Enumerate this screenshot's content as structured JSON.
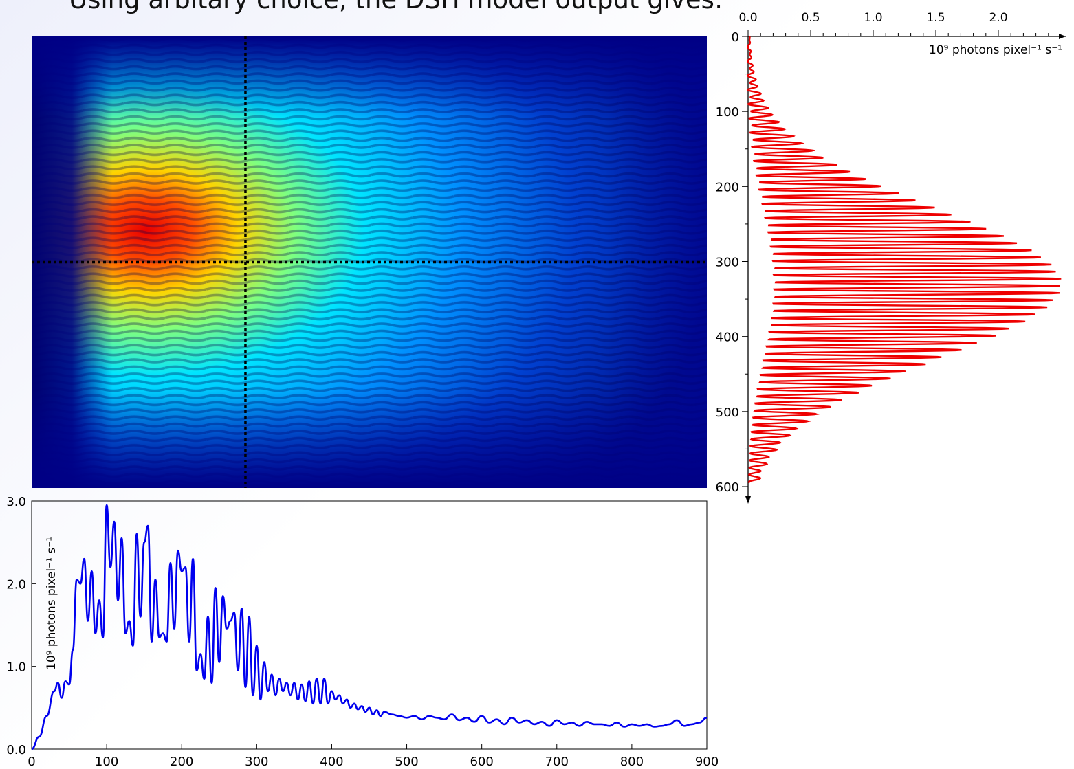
{
  "slide": {
    "title": "Using arbitary choice, the DSH model output gives:"
  },
  "colormap": "jet",
  "colors": {
    "horizontal_profile": "#0000ee",
    "vertical_profile": "#ee0000",
    "cut_line": "#000000"
  },
  "chart_data": [
    {
      "type": "heatmap",
      "description_key": "field",
      "colormap": "jet",
      "xlim": [
        0,
        900
      ],
      "ylim": [
        0,
        600
      ],
      "cut_x": 285,
      "cut_y": 300,
      "peak_location": [
        150,
        280
      ]
    },
    {
      "type": "line",
      "ylabel": "10⁹ photons pixel⁻¹ s⁻¹",
      "xlim": [
        0,
        900
      ],
      "ylim": [
        0,
        3.0
      ],
      "x_ticks": [
        "0",
        "100",
        "200",
        "300",
        "400",
        "500",
        "600",
        "700",
        "800",
        "900"
      ],
      "y_ticks": [
        "0.0",
        "1.0",
        "2.0",
        "3.0"
      ],
      "series": [
        {
          "color": "#0000ee",
          "x": [
            0,
            10,
            20,
            30,
            35,
            40,
            45,
            50,
            55,
            60,
            65,
            70,
            75,
            80,
            85,
            90,
            95,
            100,
            105,
            110,
            115,
            120,
            125,
            130,
            135,
            140,
            145,
            150,
            155,
            160,
            165,
            170,
            175,
            180,
            185,
            190,
            195,
            200,
            205,
            210,
            215,
            220,
            225,
            230,
            235,
            240,
            245,
            250,
            255,
            260,
            265,
            270,
            275,
            280,
            285,
            290,
            295,
            300,
            305,
            310,
            315,
            320,
            325,
            330,
            335,
            340,
            345,
            350,
            355,
            360,
            365,
            370,
            375,
            380,
            385,
            390,
            395,
            400,
            405,
            410,
            415,
            420,
            425,
            430,
            435,
            440,
            445,
            450,
            455,
            460,
            465,
            470,
            480,
            490,
            500,
            510,
            520,
            530,
            540,
            550,
            560,
            570,
            580,
            590,
            600,
            610,
            620,
            630,
            640,
            650,
            660,
            670,
            680,
            690,
            700,
            710,
            720,
            730,
            740,
            750,
            760,
            770,
            780,
            790,
            800,
            810,
            820,
            830,
            840,
            850,
            860,
            870,
            880,
            890,
            900
          ],
          "y": [
            0.0,
            0.15,
            0.4,
            0.7,
            0.8,
            0.62,
            0.82,
            0.78,
            1.2,
            2.05,
            2.0,
            2.3,
            1.55,
            2.15,
            1.4,
            1.8,
            1.35,
            2.95,
            2.2,
            2.75,
            1.8,
            2.55,
            1.4,
            1.55,
            1.25,
            2.6,
            1.6,
            2.5,
            2.7,
            1.3,
            2.05,
            1.35,
            1.4,
            1.3,
            2.25,
            1.45,
            2.4,
            2.15,
            2.2,
            1.3,
            2.3,
            0.95,
            1.15,
            0.85,
            1.6,
            0.8,
            1.95,
            1.05,
            1.85,
            1.45,
            1.55,
            1.65,
            0.95,
            1.7,
            0.75,
            1.6,
            0.65,
            1.25,
            0.6,
            1.05,
            0.7,
            0.9,
            0.65,
            0.85,
            0.7,
            0.8,
            0.65,
            0.8,
            0.6,
            0.78,
            0.58,
            0.82,
            0.55,
            0.85,
            0.55,
            0.85,
            0.55,
            0.7,
            0.6,
            0.65,
            0.55,
            0.6,
            0.5,
            0.55,
            0.48,
            0.52,
            0.45,
            0.5,
            0.42,
            0.47,
            0.4,
            0.45,
            0.42,
            0.4,
            0.38,
            0.4,
            0.36,
            0.4,
            0.38,
            0.36,
            0.42,
            0.35,
            0.38,
            0.33,
            0.4,
            0.32,
            0.36,
            0.3,
            0.38,
            0.32,
            0.35,
            0.3,
            0.33,
            0.28,
            0.35,
            0.3,
            0.32,
            0.28,
            0.33,
            0.3,
            0.3,
            0.28,
            0.32,
            0.27,
            0.3,
            0.28,
            0.3,
            0.27,
            0.28,
            0.3,
            0.35,
            0.28,
            0.3,
            0.32,
            0.38
          ]
        }
      ]
    },
    {
      "type": "line",
      "orientation": "vertical",
      "xlabel": "10⁹ photons pixel⁻¹ s⁻¹",
      "xlim": [
        0,
        2.5
      ],
      "ylim": [
        0,
        600
      ],
      "x_ticks": [
        "0.0",
        "0.5",
        "1.0",
        "1.5",
        "2.0"
      ],
      "y_ticks": [
        "0",
        "100",
        "200",
        "300",
        "400",
        "500",
        "600"
      ],
      "series": [
        {
          "color": "#ee0000",
          "peak": 2.5,
          "peak_pixel": 330,
          "width_sigma": 100,
          "fringe_period": 9.5
        }
      ]
    }
  ]
}
